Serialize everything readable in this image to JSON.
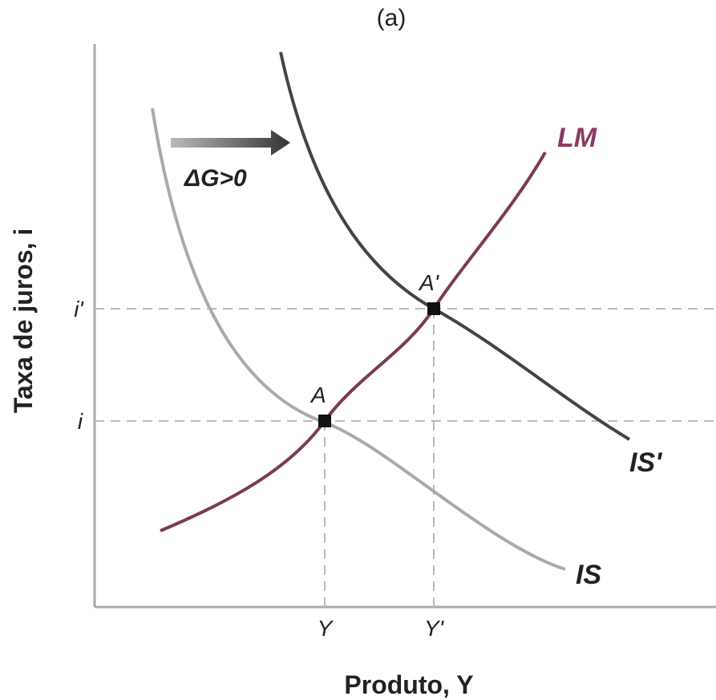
{
  "title": "(a)",
  "axes": {
    "y_label": "Taxa de juros, i",
    "x_label": "Produto, Y"
  },
  "curves": {
    "lm": "LM",
    "is": "IS",
    "is_prime": "IS'"
  },
  "shift": "ΔG>0",
  "points": {
    "a": "A",
    "a_prime": "A'"
  },
  "ticks": {
    "i": "i",
    "i_prime": "i'",
    "y": "Y",
    "y_prime": "Y'"
  }
}
